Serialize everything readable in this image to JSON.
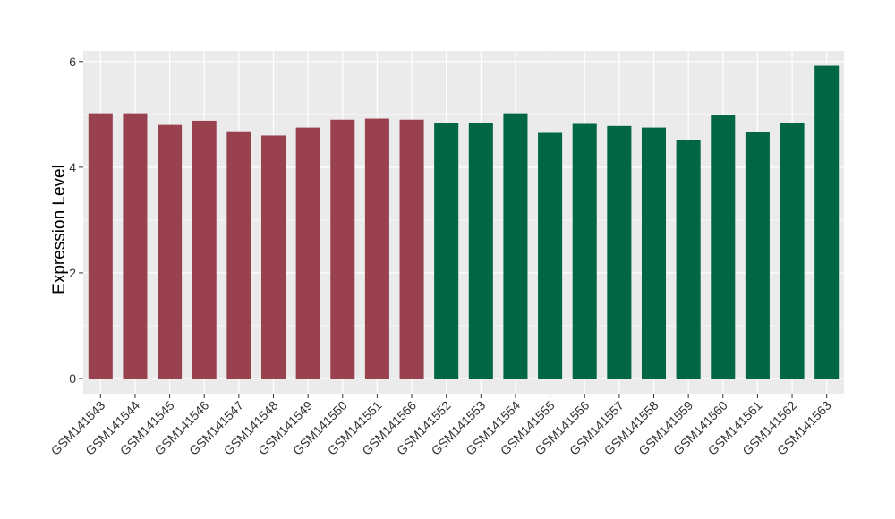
{
  "chart_data": {
    "type": "bar",
    "title": "",
    "xlabel": "",
    "ylabel": "Expression Level",
    "ylim": [
      0,
      6.2
    ],
    "yticks": [
      0,
      2,
      4,
      6
    ],
    "grid": true,
    "legend": "none",
    "categories": [
      "GSM141543",
      "GSM141544",
      "GSM141545",
      "GSM141546",
      "GSM141547",
      "GSM141548",
      "GSM141549",
      "GSM141550",
      "GSM141551",
      "GSM141566",
      "GSM141552",
      "GSM141553",
      "GSM141554",
      "GSM141555",
      "GSM141556",
      "GSM141557",
      "GSM141558",
      "GSM141559",
      "GSM141560",
      "GSM141561",
      "GSM141562",
      "GSM141563"
    ],
    "values": [
      5.02,
      5.02,
      4.8,
      4.88,
      4.68,
      4.6,
      4.75,
      4.9,
      4.92,
      4.9,
      4.83,
      4.83,
      5.02,
      4.65,
      4.82,
      4.78,
      4.75,
      4.52,
      4.98,
      4.66,
      4.83,
      5.92
    ],
    "groups": [
      0,
      0,
      0,
      0,
      0,
      0,
      0,
      0,
      0,
      0,
      1,
      1,
      1,
      1,
      1,
      1,
      1,
      1,
      1,
      1,
      1,
      1
    ],
    "group_colors": [
      "#9a414f",
      "#006644"
    ]
  },
  "colors": {
    "panel_background": "#ebebeb",
    "grid_major": "#ffffff"
  }
}
